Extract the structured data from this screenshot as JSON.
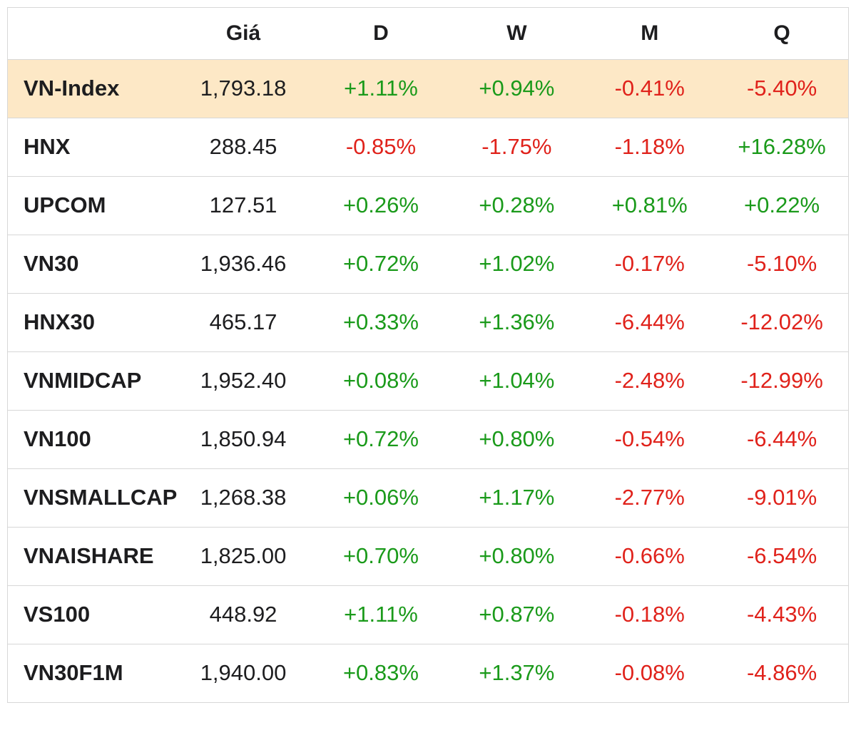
{
  "chart_data": {
    "type": "table",
    "columns": [
      "",
      "Giá",
      "D",
      "W",
      "M",
      "Q"
    ],
    "rows": [
      {
        "name": "VN-Index",
        "price": "1,793.18",
        "d": "+1.11%",
        "w": "+0.94%",
        "m": "-0.41%",
        "q": "-5.40%",
        "highlight": true
      },
      {
        "name": "HNX",
        "price": "288.45",
        "d": "-0.85%",
        "w": "-1.75%",
        "m": "-1.18%",
        "q": "+16.28%"
      },
      {
        "name": "UPCOM",
        "price": "127.51",
        "d": "+0.26%",
        "w": "+0.28%",
        "m": "+0.81%",
        "q": "+0.22%"
      },
      {
        "name": "VN30",
        "price": "1,936.46",
        "d": "+0.72%",
        "w": "+1.02%",
        "m": "-0.17%",
        "q": "-5.10%"
      },
      {
        "name": "HNX30",
        "price": "465.17",
        "d": "+0.33%",
        "w": "+1.36%",
        "m": "-6.44%",
        "q": "-12.02%"
      },
      {
        "name": "VNMIDCAP",
        "price": "1,952.40",
        "d": "+0.08%",
        "w": "+1.04%",
        "m": "-2.48%",
        "q": "-12.99%"
      },
      {
        "name": "VN100",
        "price": "1,850.94",
        "d": "+0.72%",
        "w": "+0.80%",
        "m": "-0.54%",
        "q": "-6.44%"
      },
      {
        "name": "VNSMALLCAP",
        "price": "1,268.38",
        "d": "+0.06%",
        "w": "+1.17%",
        "m": "-2.77%",
        "q": "-9.01%"
      },
      {
        "name": "VNAISHARE",
        "price": "1,825.00",
        "d": "+0.70%",
        "w": "+0.80%",
        "m": "-0.66%",
        "q": "-6.54%"
      },
      {
        "name": "VS100",
        "price": "448.92",
        "d": "+1.11%",
        "w": "+0.87%",
        "m": "-0.18%",
        "q": "-4.43%"
      },
      {
        "name": "VN30F1M",
        "price": "1,940.00",
        "d": "+0.83%",
        "w": "+1.37%",
        "m": "-0.08%",
        "q": "-4.86%"
      }
    ],
    "colors": {
      "positive": "#1a9a1a",
      "negative": "#e0221b",
      "highlight_row": "#fde8c6"
    }
  }
}
